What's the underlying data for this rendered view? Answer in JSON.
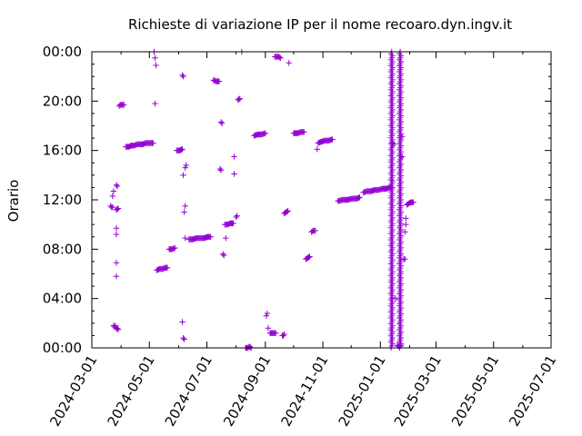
{
  "chart_data": {
    "type": "scatter",
    "title": "Richieste di variazione IP per il nome recoaro.dyn.ingv.it",
    "xlabel": "",
    "ylabel": "Orario",
    "x_type": "date",
    "xlim": [
      "2024-03-01",
      "2025-07-01"
    ],
    "ylim": [
      0,
      24
    ],
    "x_ticks": [
      "2024-03-01",
      "2024-05-01",
      "2024-07-01",
      "2024-09-01",
      "2024-11-01",
      "2025-01-01",
      "2025-03-01",
      "2025-05-01",
      "2025-07-01"
    ],
    "y_ticks": [
      {
        "value": 0,
        "label": "00:00"
      },
      {
        "value": 4,
        "label": "04:00"
      },
      {
        "value": 8,
        "label": "08:00"
      },
      {
        "value": 12,
        "label": "12:00"
      },
      {
        "value": 16,
        "label": "16:00"
      },
      {
        "value": 20,
        "label": "20:00"
      },
      {
        "value": 24,
        "label": "00:00"
      }
    ],
    "grid": false,
    "marker": "+",
    "color": "#9400d3",
    "points": [
      [
        "2024-03-21",
        11.5
      ],
      [
        "2024-03-22",
        11.4
      ],
      [
        "2024-03-23",
        11.4
      ],
      [
        "2024-03-23",
        12.3
      ],
      [
        "2024-03-24",
        12.7
      ],
      [
        "2024-03-24",
        1.8
      ],
      [
        "2024-03-25",
        1.7
      ],
      [
        "2024-03-26",
        1.8
      ],
      [
        "2024-03-27",
        1.6
      ],
      [
        "2024-03-29",
        1.5
      ],
      [
        "2024-03-27",
        13.2
      ],
      [
        "2024-03-28",
        13.1
      ],
      [
        "2024-03-27",
        11.2
      ],
      [
        "2024-03-29",
        11.3
      ],
      [
        "2024-03-27",
        9.7
      ],
      [
        "2024-03-27",
        9.2
      ],
      [
        "2024-03-27",
        6.9
      ],
      [
        "2024-03-27",
        5.8
      ],
      [
        "2024-03-30",
        19.6
      ],
      [
        "2024-03-31",
        19.7
      ],
      [
        "2024-04-01",
        19.7
      ],
      [
        "2024-04-02",
        19.7
      ],
      [
        "2024-04-03",
        19.7
      ],
      [
        "2024-04-04",
        19.7
      ],
      [
        "2024-04-06",
        16.3
      ],
      [
        "2024-04-09",
        16.3
      ],
      [
        "2024-04-12",
        16.4
      ],
      [
        "2024-04-15",
        16.4
      ],
      [
        "2024-04-18",
        16.5
      ],
      [
        "2024-04-21",
        16.5
      ],
      [
        "2024-04-24",
        16.5
      ],
      [
        "2024-04-27",
        16.6
      ],
      [
        "2024-04-30",
        16.6
      ],
      [
        "2024-05-03",
        16.6
      ],
      [
        "2024-05-05",
        16.6
      ],
      [
        "2024-05-06",
        24.0
      ],
      [
        "2024-05-07",
        23.5
      ],
      [
        "2024-05-08",
        22.9
      ],
      [
        "2024-05-07",
        19.8
      ],
      [
        "2024-05-09",
        6.3
      ],
      [
        "2024-05-12",
        6.4
      ],
      [
        "2024-05-15",
        6.4
      ],
      [
        "2024-05-18",
        6.5
      ],
      [
        "2024-05-20",
        6.5
      ],
      [
        "2024-05-22",
        8.0
      ],
      [
        "2024-05-25",
        8.0
      ],
      [
        "2024-05-28",
        8.1
      ],
      [
        "2024-05-30",
        16.0
      ],
      [
        "2024-06-02",
        16.0
      ],
      [
        "2024-06-05",
        16.1
      ],
      [
        "2024-06-05",
        22.1
      ],
      [
        "2024-06-06",
        22.0
      ],
      [
        "2024-06-06",
        14.0
      ],
      [
        "2024-06-08",
        14.6
      ],
      [
        "2024-06-09",
        14.8
      ],
      [
        "2024-06-07",
        11.0
      ],
      [
        "2024-06-08",
        11.5
      ],
      [
        "2024-06-08",
        8.9
      ],
      [
        "2024-06-05",
        2.1
      ],
      [
        "2024-06-06",
        0.8
      ],
      [
        "2024-06-07",
        0.7
      ],
      [
        "2024-06-12",
        8.8
      ],
      [
        "2024-06-16",
        8.8
      ],
      [
        "2024-06-20",
        8.9
      ],
      [
        "2024-06-24",
        8.9
      ],
      [
        "2024-06-28",
        8.9
      ],
      [
        "2024-07-02",
        9.0
      ],
      [
        "2024-07-05",
        9.0
      ],
      [
        "2024-07-08",
        21.7
      ],
      [
        "2024-07-11",
        21.6
      ],
      [
        "2024-07-14",
        21.6
      ],
      [
        "2024-07-15",
        14.5
      ],
      [
        "2024-07-16",
        14.4
      ],
      [
        "2024-07-16",
        18.3
      ],
      [
        "2024-07-17",
        18.2
      ],
      [
        "2024-07-18",
        7.6
      ],
      [
        "2024-07-19",
        7.5
      ],
      [
        "2024-07-21",
        8.9
      ],
      [
        "2024-07-20",
        10.0
      ],
      [
        "2024-07-23",
        10.0
      ],
      [
        "2024-07-26",
        10.1
      ],
      [
        "2024-07-29",
        10.1
      ],
      [
        "2024-07-30",
        15.5
      ],
      [
        "2024-07-30",
        14.1
      ],
      [
        "2024-08-01",
        10.6
      ],
      [
        "2024-08-02",
        10.7
      ],
      [
        "2024-08-03",
        20.1
      ],
      [
        "2024-08-05",
        20.2
      ],
      [
        "2024-08-07",
        24.0
      ],
      [
        "2024-08-11",
        0.0
      ],
      [
        "2024-08-13",
        0.0
      ],
      [
        "2024-08-15",
        0.1
      ],
      [
        "2024-08-17",
        0.0
      ],
      [
        "2024-08-20",
        17.2
      ],
      [
        "2024-08-24",
        17.3
      ],
      [
        "2024-08-28",
        17.3
      ],
      [
        "2024-09-01",
        17.4
      ],
      [
        "2024-09-02",
        2.6
      ],
      [
        "2024-09-03",
        2.8
      ],
      [
        "2024-09-04",
        1.6
      ],
      [
        "2024-09-06",
        1.2
      ],
      [
        "2024-09-08",
        1.2
      ],
      [
        "2024-09-10",
        1.2
      ],
      [
        "2024-09-12",
        1.2
      ],
      [
        "2024-09-11",
        23.6
      ],
      [
        "2024-09-13",
        23.6
      ],
      [
        "2024-09-15",
        23.6
      ],
      [
        "2024-09-17",
        23.5
      ],
      [
        "2024-09-19",
        1.0
      ],
      [
        "2024-09-20",
        1.0
      ],
      [
        "2024-09-21",
        1.1
      ],
      [
        "2024-09-21",
        10.9
      ],
      [
        "2024-09-23",
        11.0
      ],
      [
        "2024-09-25",
        11.1
      ],
      [
        "2024-09-26",
        23.1
      ],
      [
        "2024-10-01",
        17.4
      ],
      [
        "2024-10-05",
        17.4
      ],
      [
        "2024-10-09",
        17.5
      ],
      [
        "2024-10-12",
        17.5
      ],
      [
        "2024-10-14",
        7.2
      ],
      [
        "2024-10-16",
        7.3
      ],
      [
        "2024-10-18",
        7.4
      ],
      [
        "2024-10-20",
        9.4
      ],
      [
        "2024-10-22",
        9.5
      ],
      [
        "2024-10-24",
        9.5
      ],
      [
        "2024-10-26",
        16.1
      ],
      [
        "2024-10-27",
        16.6
      ],
      [
        "2024-10-30",
        16.7
      ],
      [
        "2024-11-03",
        16.8
      ],
      [
        "2024-11-07",
        16.8
      ],
      [
        "2024-11-11",
        16.9
      ],
      [
        "2024-11-17",
        11.9
      ],
      [
        "2024-11-22",
        12.0
      ],
      [
        "2024-11-27",
        12.0
      ],
      [
        "2024-12-02",
        12.1
      ],
      [
        "2024-12-07",
        12.1
      ],
      [
        "2024-12-10",
        12.2
      ],
      [
        "2024-12-14",
        12.6
      ],
      [
        "2024-12-18",
        12.7
      ],
      [
        "2024-12-22",
        12.7
      ],
      [
        "2024-12-26",
        12.8
      ],
      [
        "2024-12-30",
        12.8
      ],
      [
        "2025-01-03",
        12.9
      ],
      [
        "2025-01-07",
        12.9
      ],
      [
        "2025-01-11",
        13.0
      ],
      [
        "2025-01-13",
        13.0
      ],
      [
        "2025-01-13",
        13.6
      ],
      [
        "2025-01-14",
        16.6
      ],
      [
        "2025-01-15",
        16.5
      ],
      [
        "2025-01-17",
        4.0
      ],
      [
        "2025-01-19",
        0.2
      ],
      [
        "2025-01-21",
        0.1
      ],
      [
        "2025-01-23",
        0.2
      ],
      [
        "2025-01-24",
        17.1
      ],
      [
        "2025-01-24",
        15.5
      ],
      [
        "2025-01-26",
        7.2
      ],
      [
        "2025-01-27",
        7.2
      ],
      [
        "2025-01-27",
        9.4
      ],
      [
        "2025-01-28",
        10.0
      ],
      [
        "2025-01-28",
        10.5
      ],
      [
        "2025-01-29",
        11.6
      ],
      [
        "2025-01-31",
        11.7
      ],
      [
        "2025-02-02",
        11.8
      ],
      [
        "2025-02-04",
        11.8
      ],
      [
        "2025-02-05",
        11.8
      ]
    ],
    "dense_columns": [
      {
        "date": "2025-01-13",
        "from": 0.0,
        "to": 24.0
      },
      {
        "date": "2025-01-22",
        "from": 0.0,
        "to": 24.0
      }
    ]
  }
}
